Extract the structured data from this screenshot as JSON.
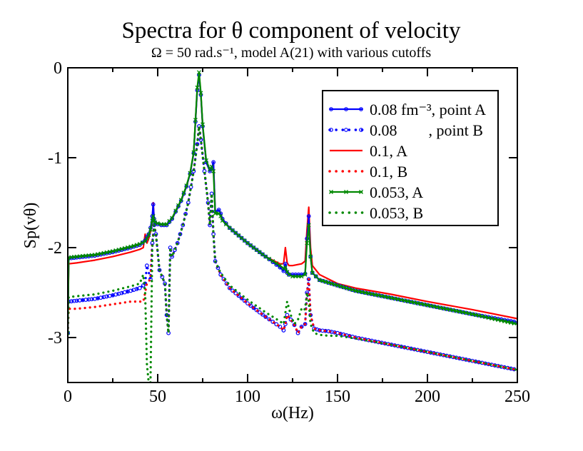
{
  "chart_data": {
    "type": "line",
    "title": "Spectra for θ component of velocity",
    "subtitle": "Ω = 50 rad.s⁻¹, model A(21) with various cutoffs",
    "xlabel": "ω(Hz)",
    "ylabel": "Sp(vθ)",
    "xlim": [
      0,
      250
    ],
    "ylim": [
      -3.5,
      0
    ],
    "xticks": [
      0,
      50,
      100,
      150,
      200,
      250
    ],
    "yticks": [
      0,
      -1,
      -2,
      -3
    ],
    "grid": false,
    "legend_position": "top-right",
    "series": [
      {
        "name": "0.08 fm⁻³, point A",
        "color": "#0000ff",
        "style": "solid",
        "marker": "circle",
        "x": [
          0,
          0.5,
          5,
          15,
          25,
          35,
          40,
          43,
          44,
          45,
          46,
          47,
          47.5,
          48,
          48.5,
          50,
          52,
          55,
          58,
          60,
          63,
          66,
          68,
          70,
          71,
          72,
          73,
          74,
          75,
          77,
          79,
          80,
          81,
          82,
          84,
          85,
          86,
          90,
          100,
          110,
          118,
          120,
          121,
          122,
          123,
          125,
          130,
          132,
          133,
          134,
          135,
          136,
          140,
          150,
          160,
          180,
          200,
          225,
          250
        ],
        "y": [
          -2.95,
          -2.12,
          -2.11,
          -2.09,
          -2.05,
          -2.0,
          -1.97,
          -1.92,
          -1.88,
          -1.85,
          -1.78,
          -1.65,
          -1.52,
          -1.68,
          -1.72,
          -1.74,
          -1.75,
          -1.75,
          -1.68,
          -1.6,
          -1.48,
          -1.32,
          -1.18,
          -0.95,
          -0.6,
          -0.25,
          -0.08,
          -0.3,
          -0.65,
          -1.05,
          -1.15,
          -1.12,
          -1.05,
          -1.6,
          -1.58,
          -1.62,
          -1.68,
          -1.78,
          -1.95,
          -2.1,
          -2.22,
          -2.26,
          -2.18,
          -2.28,
          -2.3,
          -2.3,
          -2.3,
          -2.29,
          -1.9,
          -1.65,
          -2.1,
          -2.28,
          -2.36,
          -2.42,
          -2.48,
          -2.56,
          -2.64,
          -2.74,
          -2.83
        ]
      },
      {
        "name": "0.08        , point B",
        "color": "#0000ff",
        "style": "dotted",
        "marker": "circle",
        "x": [
          0,
          0.5,
          5,
          15,
          25,
          35,
          40,
          42,
          43,
          44,
          46,
          47,
          48,
          49,
          51,
          54,
          55,
          56,
          57,
          58,
          61,
          64,
          67,
          70,
          72,
          73,
          74,
          76,
          78,
          79,
          80,
          81,
          82,
          85,
          90,
          100,
          110,
          118,
          120,
          121,
          122,
          124,
          126,
          128,
          130,
          132,
          133,
          134,
          135,
          137,
          140,
          145,
          150,
          160,
          180,
          200,
          225,
          250
        ],
        "y": [
          -2.95,
          -2.6,
          -2.59,
          -2.57,
          -2.53,
          -2.48,
          -2.45,
          -2.42,
          -2.4,
          -2.2,
          -2.35,
          -1.95,
          -1.75,
          -1.85,
          -2.25,
          -2.4,
          -2.75,
          -2.95,
          -2.0,
          -2.1,
          -1.95,
          -1.75,
          -1.5,
          -1.15,
          -0.85,
          -0.65,
          -0.8,
          -1.15,
          -1.5,
          -1.75,
          -1.4,
          -1.85,
          -2.15,
          -2.3,
          -2.45,
          -2.62,
          -2.77,
          -2.88,
          -2.92,
          -2.85,
          -2.75,
          -2.8,
          -2.86,
          -2.95,
          -2.88,
          -2.85,
          -2.5,
          -2.35,
          -2.75,
          -2.9,
          -2.92,
          -2.93,
          -2.95,
          -3.0,
          -3.08,
          -3.16,
          -3.26,
          -3.36
        ]
      },
      {
        "name": "0.1, A",
        "color": "#ff0000",
        "style": "solid",
        "marker": "none",
        "x": [
          0,
          0.5,
          5,
          15,
          25,
          35,
          40,
          42,
          43,
          44,
          45,
          46,
          47,
          47.5,
          48,
          48.5,
          50,
          52,
          55,
          58,
          60,
          63,
          66,
          68,
          70,
          71,
          72,
          73,
          74,
          75,
          77,
          79,
          80,
          81,
          82,
          84,
          85,
          86,
          90,
          100,
          110,
          118,
          120,
          121,
          122,
          123,
          125,
          130,
          132,
          133,
          134,
          135,
          136,
          140,
          150,
          160,
          180,
          200,
          225,
          250
        ],
        "y": [
          -2.95,
          -2.18,
          -2.17,
          -2.14,
          -2.1,
          -2.05,
          -2.02,
          -2.0,
          -1.85,
          -1.95,
          -1.9,
          -1.82,
          -1.7,
          -1.5,
          -1.68,
          -1.72,
          -1.74,
          -1.75,
          -1.75,
          -1.68,
          -1.6,
          -1.48,
          -1.32,
          -1.18,
          -0.95,
          -0.6,
          -0.25,
          -0.08,
          -0.3,
          -0.65,
          -1.05,
          -1.15,
          -1.12,
          -1.05,
          -1.6,
          -1.58,
          -1.62,
          -1.68,
          -1.78,
          -1.95,
          -2.1,
          -2.18,
          -2.18,
          -2.0,
          -2.17,
          -2.2,
          -2.2,
          -2.18,
          -2.15,
          -1.8,
          -1.55,
          -2.0,
          -2.2,
          -2.3,
          -2.4,
          -2.45,
          -2.52,
          -2.6,
          -2.69,
          -2.79
        ]
      },
      {
        "name": "0.1, B",
        "color": "#ff0000",
        "style": "dotted",
        "marker": "none",
        "x": [
          0,
          0.5,
          5,
          15,
          25,
          35,
          40,
          42,
          43,
          44,
          46,
          47,
          48,
          49,
          51,
          54,
          55,
          56,
          57,
          58,
          61,
          64,
          67,
          70,
          72,
          73,
          74,
          76,
          78,
          79,
          80,
          81,
          82,
          85,
          90,
          100,
          110,
          118,
          120,
          121,
          122,
          124,
          126,
          128,
          130,
          132,
          133,
          134,
          135,
          137,
          140,
          145,
          150,
          160,
          180,
          200,
          225,
          250
        ],
        "y": [
          -2.95,
          -2.68,
          -2.68,
          -2.66,
          -2.63,
          -2.6,
          -2.6,
          -2.6,
          -2.5,
          -2.4,
          -2.35,
          -1.95,
          -1.75,
          -1.85,
          -2.25,
          -2.4,
          -2.75,
          -2.95,
          -2.0,
          -2.1,
          -1.95,
          -1.75,
          -1.5,
          -1.15,
          -0.85,
          -0.65,
          -0.8,
          -1.15,
          -1.5,
          -1.75,
          -1.4,
          -1.85,
          -2.15,
          -2.3,
          -2.45,
          -2.62,
          -2.77,
          -2.88,
          -2.92,
          -2.85,
          -2.75,
          -2.8,
          -2.86,
          -2.95,
          -2.88,
          -2.85,
          -2.5,
          -2.35,
          -2.75,
          -2.9,
          -2.92,
          -2.93,
          -2.95,
          -3.0,
          -3.08,
          -3.16,
          -3.26,
          -3.36
        ]
      },
      {
        "name": "0.053, A",
        "color": "#008800",
        "style": "solid",
        "marker": "x",
        "x": [
          0,
          0.5,
          5,
          15,
          25,
          35,
          40,
          43,
          44,
          45,
          46,
          47,
          47.5,
          48,
          48.5,
          50,
          52,
          55,
          58,
          60,
          63,
          66,
          68,
          70,
          71,
          72,
          73,
          74,
          75,
          77,
          79,
          80,
          81,
          82,
          84,
          85,
          86,
          90,
          100,
          110,
          118,
          120,
          121,
          122,
          123,
          125,
          130,
          132,
          133,
          134,
          135,
          136,
          140,
          150,
          160,
          180,
          200,
          225,
          250
        ],
        "y": [
          -2.95,
          -2.11,
          -2.1,
          -2.08,
          -2.04,
          -1.99,
          -1.96,
          -1.93,
          -1.9,
          -1.86,
          -1.8,
          -1.7,
          -1.65,
          -1.7,
          -1.72,
          -1.73,
          -1.74,
          -1.74,
          -1.67,
          -1.59,
          -1.47,
          -1.31,
          -1.17,
          -0.94,
          -0.58,
          -0.22,
          -0.05,
          -0.28,
          -0.63,
          -1.03,
          -1.13,
          -1.1,
          -1.15,
          -1.62,
          -1.62,
          -1.65,
          -1.7,
          -1.78,
          -1.95,
          -2.1,
          -2.2,
          -2.23,
          -2.22,
          -2.27,
          -2.3,
          -2.32,
          -2.32,
          -2.3,
          -1.95,
          -1.75,
          -2.1,
          -2.28,
          -2.36,
          -2.42,
          -2.48,
          -2.56,
          -2.64,
          -2.74,
          -2.85
        ]
      },
      {
        "name": "0.053, B",
        "color": "#008800",
        "style": "dotted",
        "marker": "none",
        "x": [
          0,
          0.5,
          5,
          15,
          25,
          35,
          40,
          42,
          43,
          44,
          45,
          46,
          47,
          48,
          49,
          51,
          54,
          55,
          56,
          57,
          58,
          61,
          64,
          67,
          70,
          72,
          73,
          74,
          76,
          78,
          79,
          80,
          81,
          82,
          85,
          90,
          100,
          110,
          118,
          120,
          122,
          124,
          126,
          128,
          130,
          131,
          132,
          133,
          134,
          135,
          137,
          140,
          145,
          150,
          160,
          180,
          200,
          225,
          250
        ],
        "y": [
          -2.95,
          -2.55,
          -2.54,
          -2.52,
          -2.48,
          -2.43,
          -2.4,
          -2.3,
          -2.5,
          -3.3,
          -3.5,
          -3.5,
          -2.0,
          -1.75,
          -1.85,
          -2.25,
          -2.4,
          -2.75,
          -2.95,
          -2.0,
          -2.1,
          -1.95,
          -1.75,
          -1.5,
          -1.15,
          -0.85,
          -0.65,
          -0.8,
          -1.15,
          -1.5,
          -1.75,
          -1.4,
          -1.85,
          -2.15,
          -2.28,
          -2.42,
          -2.58,
          -2.72,
          -2.82,
          -2.85,
          -2.6,
          -2.75,
          -2.85,
          -2.8,
          -2.68,
          -2.7,
          -2.68,
          -2.5,
          -2.6,
          -2.85,
          -2.95,
          -2.97,
          -2.98,
          -2.98,
          -3.01,
          -3.08,
          -3.16,
          -3.26,
          -3.36
        ]
      }
    ]
  }
}
